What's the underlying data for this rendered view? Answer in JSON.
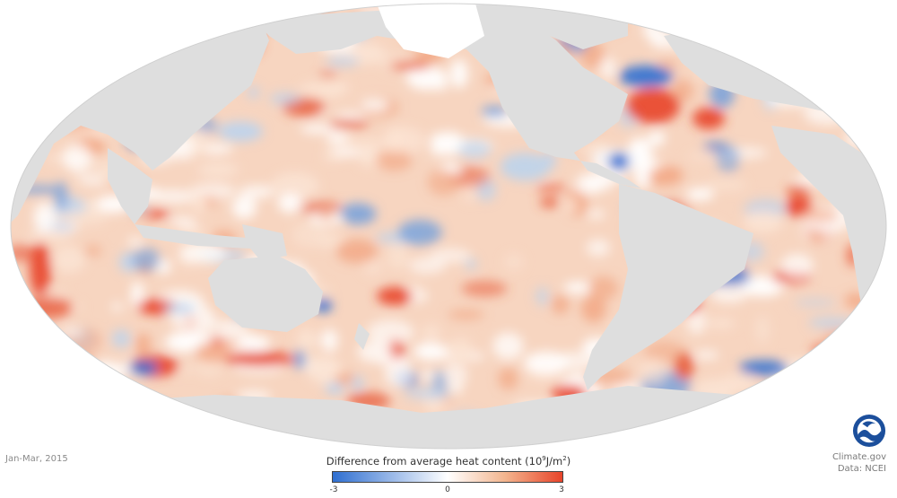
{
  "map": {
    "projection": "Mollweide-style world ocean map",
    "land_color": "#dedede",
    "ocean_base_color": "#f6d2bb"
  },
  "date": "Jan-Mar, 2015",
  "legend": {
    "title": "Difference from average heat content",
    "unit_base": "10",
    "unit_exp": "9",
    "unit_rest": "J/m",
    "unit_sq": "2",
    "min_label": "-3",
    "mid_label": "0",
    "max_label": "3",
    "colors": {
      "cold": "#2f6fd1",
      "neutral": "#ffffff",
      "warm": "#e8442a"
    }
  },
  "credits": {
    "site": "Climate.gov",
    "data": "Data: NCEI",
    "logo": "NOAA"
  }
}
